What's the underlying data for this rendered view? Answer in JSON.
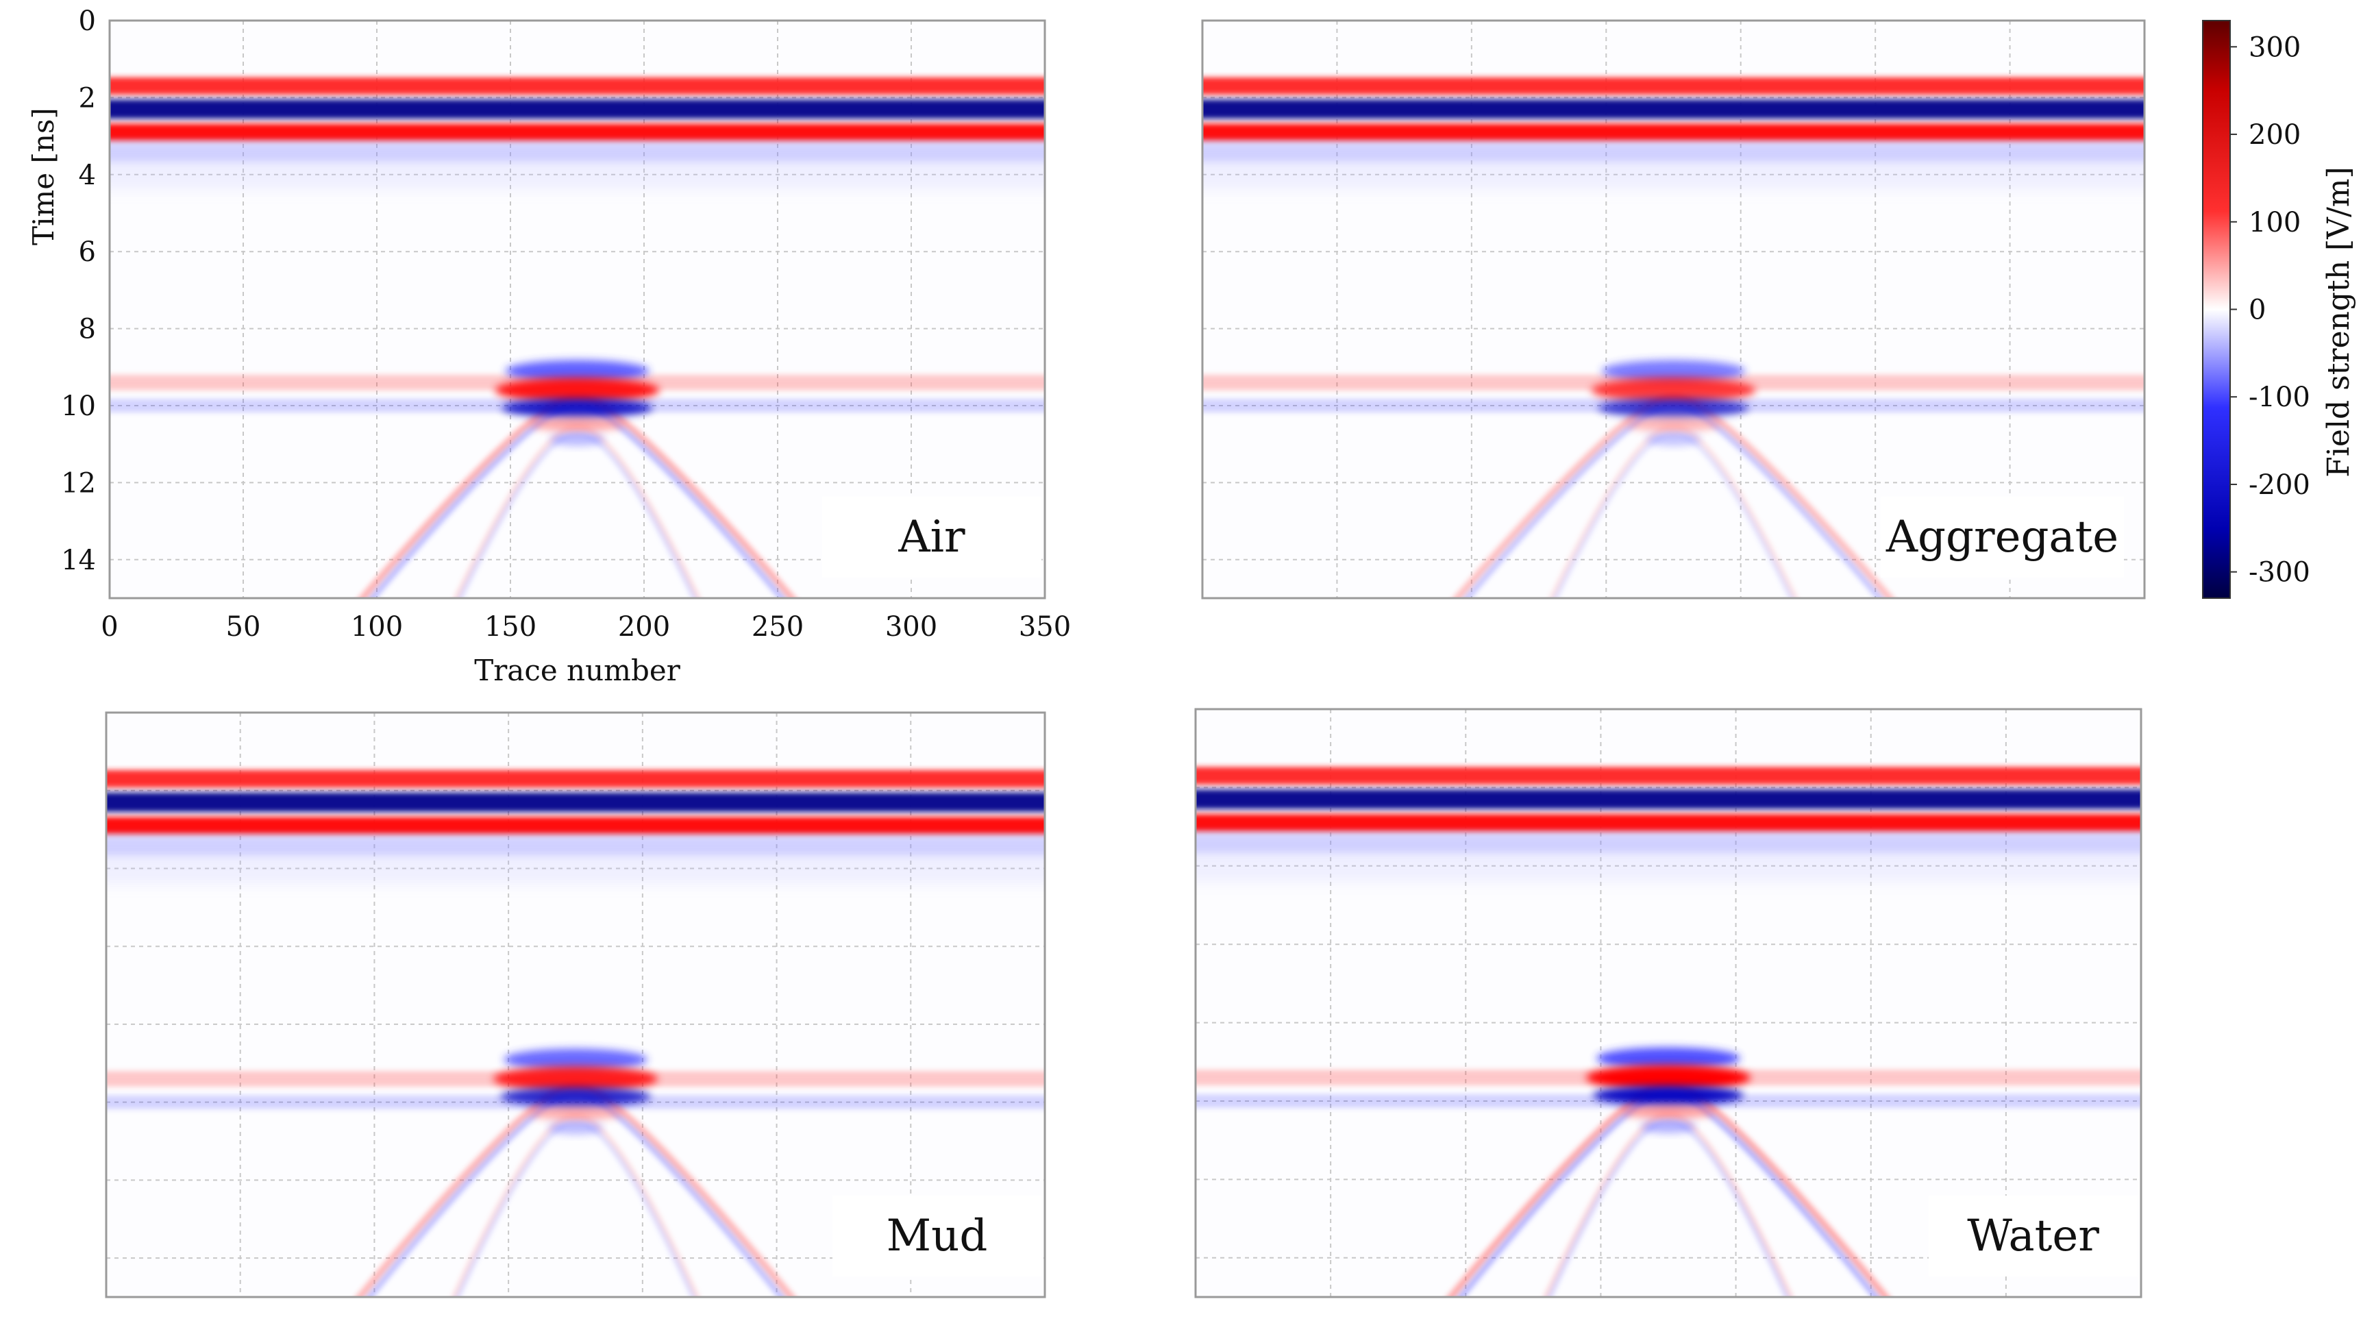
{
  "figure": {
    "background": "#ffffff",
    "grid_color": "#c8c8c8",
    "frame_color": "#9a9a9a"
  },
  "chart_data": [
    {
      "type": "heatmap",
      "panel_label": "Air",
      "xlabel": "Trace number",
      "ylabel": "Time [ns]",
      "xlim": [
        0,
        350
      ],
      "ylim": [
        15,
        0
      ],
      "xticks": [
        "0",
        "50",
        "100",
        "150",
        "200",
        "250",
        "300",
        "350"
      ],
      "yticks": [
        "0",
        "2",
        "4",
        "6",
        "8",
        "10",
        "12",
        "14"
      ],
      "grid": true,
      "direct_wave_ns": {
        "red_top": 1.7,
        "blue": 2.3,
        "red_bottom": 2.9,
        "blue_faint": 3.4
      },
      "interface_ns": {
        "red": 9.4,
        "blue": 10.0
      },
      "apex_trace": 175,
      "apex_ns": 9.6,
      "hyperbola_halfwidth_traces": 75,
      "target_strength": 0.9
    },
    {
      "type": "heatmap",
      "panel_label": "Aggregate",
      "xlim": [
        0,
        350
      ],
      "ylim": [
        15,
        0
      ],
      "grid": true,
      "direct_wave_ns": {
        "red_top": 1.7,
        "blue": 2.3,
        "red_bottom": 2.9,
        "blue_faint": 3.4
      },
      "interface_ns": {
        "red": 9.4,
        "blue": 10.0
      },
      "apex_trace": 175,
      "apex_ns": 9.6,
      "hyperbola_halfwidth_traces": 75,
      "target_strength": 0.75
    },
    {
      "type": "heatmap",
      "panel_label": "Mud",
      "xlim": [
        0,
        350
      ],
      "ylim": [
        15,
        0
      ],
      "grid": true,
      "direct_wave_ns": {
        "red_top": 1.7,
        "blue": 2.3,
        "red_bottom": 2.9,
        "blue_faint": 3.4
      },
      "interface_ns": {
        "red": 9.4,
        "blue": 10.0
      },
      "apex_trace": 175,
      "apex_ns": 9.4,
      "hyperbola_halfwidth_traces": 75,
      "target_strength": 0.85
    },
    {
      "type": "heatmap",
      "panel_label": "Water",
      "xlim": [
        0,
        350
      ],
      "ylim": [
        15,
        0
      ],
      "grid": true,
      "direct_wave_ns": {
        "red_top": 1.7,
        "blue": 2.3,
        "red_bottom": 2.9,
        "blue_faint": 3.4
      },
      "interface_ns": {
        "red": 9.4,
        "blue": 10.0
      },
      "apex_trace": 175,
      "apex_ns": 9.4,
      "hyperbola_halfwidth_traces": 75,
      "target_strength": 1.0
    }
  ],
  "colorbar": {
    "label": "Field strength [V/m]",
    "range": [
      -330,
      330
    ],
    "ticks": [
      {
        "value": 300,
        "label": "300"
      },
      {
        "value": 200,
        "label": "200"
      },
      {
        "value": 100,
        "label": "100"
      },
      {
        "value": 0,
        "label": "0"
      },
      {
        "value": -100,
        "label": "-100"
      },
      {
        "value": -200,
        "label": "-200"
      },
      {
        "value": -300,
        "label": "-300"
      }
    ],
    "colors": {
      "top": "#5e0000",
      "red": "#ff1010",
      "white": "#ffffff",
      "blue": "#1010ff",
      "bottom": "#000040"
    }
  }
}
